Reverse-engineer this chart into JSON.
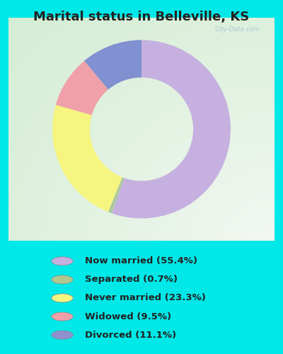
{
  "title": "Marital status in Belleville, KS",
  "slices": [
    55.4,
    0.7,
    23.3,
    9.5,
    11.1
  ],
  "colors": [
    "#c5b0e0",
    "#aec8a0",
    "#f5f580",
    "#f0a0a8",
    "#8090d0"
  ],
  "labels": [
    "Now married (55.4%)",
    "Separated (0.7%)",
    "Never married (23.3%)",
    "Widowed (9.5%)",
    "Divorced (11.1%)"
  ],
  "legend_colors": [
    "#c5b0e0",
    "#b0c890",
    "#f5f580",
    "#f0a0a8",
    "#9090d0"
  ],
  "bg_cyan": "#00e8e8",
  "title_fontsize": 13,
  "legend_fontsize": 9.5,
  "donut_width": 0.42,
  "startangle": 90
}
